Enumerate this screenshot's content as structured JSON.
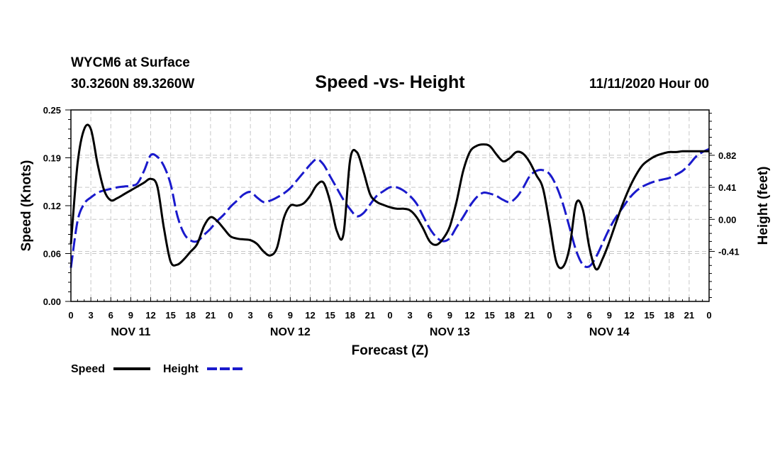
{
  "header": {
    "station": "WYCM6 at Surface",
    "coords": "30.3260N 89.3260W",
    "title": "Speed -vs- Height",
    "run": "11/11/2020 Hour 00"
  },
  "chart_data": {
    "type": "line",
    "title": "Speed -vs- Height",
    "xlabel": "Forecast (Z)",
    "ylabel_left": "Speed (Knots)",
    "ylabel_right": "Height (feet)",
    "x_unit": "forecast hour",
    "xlim": [
      0,
      96
    ],
    "ylim_left": [
      0,
      0.25
    ],
    "ylim_right": [
      -1.05,
      1.4
    ],
    "left_ticks": [
      "0.00",
      "0.06",
      "0.12",
      "0.19",
      "0.25"
    ],
    "left_tick_values": [
      0,
      0.0625,
      0.125,
      0.1875,
      0.25
    ],
    "right_ticks": [
      "-0.41",
      "0.00",
      "0.41",
      "0.82"
    ],
    "right_tick_values": [
      -0.41,
      0,
      0.41,
      0.82
    ],
    "x_tick_labels": [
      "0",
      "3",
      "6",
      "9",
      "12",
      "15",
      "18",
      "21",
      "0",
      "3",
      "6",
      "9",
      "12",
      "15",
      "18",
      "21",
      "0",
      "3",
      "6",
      "9",
      "12",
      "15",
      "18",
      "21",
      "0",
      "3",
      "6",
      "9",
      "12",
      "15",
      "18",
      "21",
      "0"
    ],
    "day_labels": [
      {
        "label": "NOV 11",
        "hour": 9
      },
      {
        "label": "NOV 12",
        "hour": 33
      },
      {
        "label": "NOV 13",
        "hour": 57
      },
      {
        "label": "NOV 14",
        "hour": 81
      }
    ],
    "grid": true,
    "series": [
      {
        "name": "Speed",
        "axis": "left",
        "color": "#000000",
        "style": "solid",
        "x": [
          0,
          1,
          2,
          3,
          4,
          5,
          6,
          7,
          8,
          9,
          10,
          11,
          12,
          13,
          14,
          15,
          16,
          17,
          18,
          19,
          20,
          21,
          22,
          23,
          24,
          25,
          26,
          27,
          28,
          29,
          30,
          31,
          32,
          33,
          34,
          35,
          36,
          37,
          38,
          39,
          40,
          41,
          42,
          43,
          44,
          45,
          46,
          47,
          48,
          49,
          50,
          51,
          52,
          53,
          54,
          55,
          56,
          57,
          58,
          59,
          60,
          61,
          62,
          63,
          64,
          65,
          66,
          67,
          68,
          69,
          70,
          71,
          72,
          73,
          74,
          75,
          76,
          77,
          78,
          79,
          80,
          81,
          82,
          83,
          84,
          85,
          86,
          87,
          88,
          89,
          90,
          91,
          92,
          93,
          94,
          95,
          96
        ],
        "values": [
          0.075,
          0.18,
          0.225,
          0.225,
          0.18,
          0.145,
          0.132,
          0.135,
          0.14,
          0.145,
          0.15,
          0.155,
          0.16,
          0.15,
          0.095,
          0.052,
          0.048,
          0.055,
          0.065,
          0.075,
          0.098,
          0.11,
          0.105,
          0.095,
          0.085,
          0.082,
          0.081,
          0.08,
          0.075,
          0.065,
          0.06,
          0.07,
          0.108,
          0.125,
          0.125,
          0.128,
          0.138,
          0.152,
          0.155,
          0.13,
          0.092,
          0.088,
          0.185,
          0.195,
          0.17,
          0.14,
          0.13,
          0.126,
          0.123,
          0.121,
          0.121,
          0.119,
          0.11,
          0.095,
          0.078,
          0.074,
          0.082,
          0.098,
          0.13,
          0.17,
          0.195,
          0.203,
          0.205,
          0.203,
          0.192,
          0.183,
          0.187,
          0.195,
          0.193,
          0.182,
          0.165,
          0.148,
          0.102,
          0.052,
          0.045,
          0.07,
          0.128,
          0.12,
          0.07,
          0.042,
          0.056,
          0.078,
          0.103,
          0.127,
          0.148,
          0.165,
          0.178,
          0.185,
          0.19,
          0.193,
          0.195,
          0.195,
          0.196,
          0.196,
          0.196,
          0.196,
          0.196
        ]
      },
      {
        "name": "Height",
        "axis": "right",
        "color": "#1a1acc",
        "style": "dashed",
        "x": [
          0,
          1,
          2,
          3,
          4,
          5,
          6,
          7,
          8,
          9,
          10,
          11,
          12,
          13,
          14,
          15,
          16,
          17,
          18,
          19,
          20,
          21,
          22,
          23,
          24,
          25,
          26,
          27,
          28,
          29,
          30,
          31,
          32,
          33,
          34,
          35,
          36,
          37,
          38,
          39,
          40,
          41,
          42,
          43,
          44,
          45,
          46,
          47,
          48,
          49,
          50,
          51,
          52,
          53,
          54,
          55,
          56,
          57,
          58,
          59,
          60,
          61,
          62,
          63,
          64,
          65,
          66,
          67,
          68,
          69,
          70,
          71,
          72,
          73,
          74,
          75,
          76,
          77,
          78,
          79,
          80,
          81,
          82,
          83,
          84,
          85,
          86,
          87,
          88,
          89,
          90,
          91,
          92,
          93,
          94,
          95,
          96
        ],
        "values": [
          -0.62,
          -0.02,
          0.2,
          0.28,
          0.34,
          0.37,
          0.39,
          0.41,
          0.42,
          0.43,
          0.46,
          0.62,
          0.82,
          0.8,
          0.68,
          0.45,
          0.05,
          -0.18,
          -0.27,
          -0.28,
          -0.2,
          -0.12,
          -0.02,
          0.06,
          0.16,
          0.24,
          0.32,
          0.35,
          0.28,
          0.22,
          0.24,
          0.28,
          0.33,
          0.4,
          0.5,
          0.6,
          0.7,
          0.77,
          0.7,
          0.55,
          0.4,
          0.25,
          0.13,
          0.04,
          0.08,
          0.19,
          0.3,
          0.36,
          0.41,
          0.41,
          0.37,
          0.3,
          0.2,
          0.04,
          -0.12,
          -0.23,
          -0.28,
          -0.24,
          -0.1,
          0.03,
          0.17,
          0.28,
          0.34,
          0.33,
          0.3,
          0.25,
          0.22,
          0.28,
          0.4,
          0.55,
          0.62,
          0.63,
          0.58,
          0.43,
          0.2,
          -0.1,
          -0.4,
          -0.58,
          -0.6,
          -0.48,
          -0.3,
          -0.12,
          0.03,
          0.15,
          0.27,
          0.36,
          0.42,
          0.46,
          0.49,
          0.51,
          0.53,
          0.57,
          0.62,
          0.7,
          0.8,
          0.86,
          0.9
        ]
      }
    ]
  },
  "legend": {
    "speed_label": "Speed",
    "height_label": "Height"
  }
}
